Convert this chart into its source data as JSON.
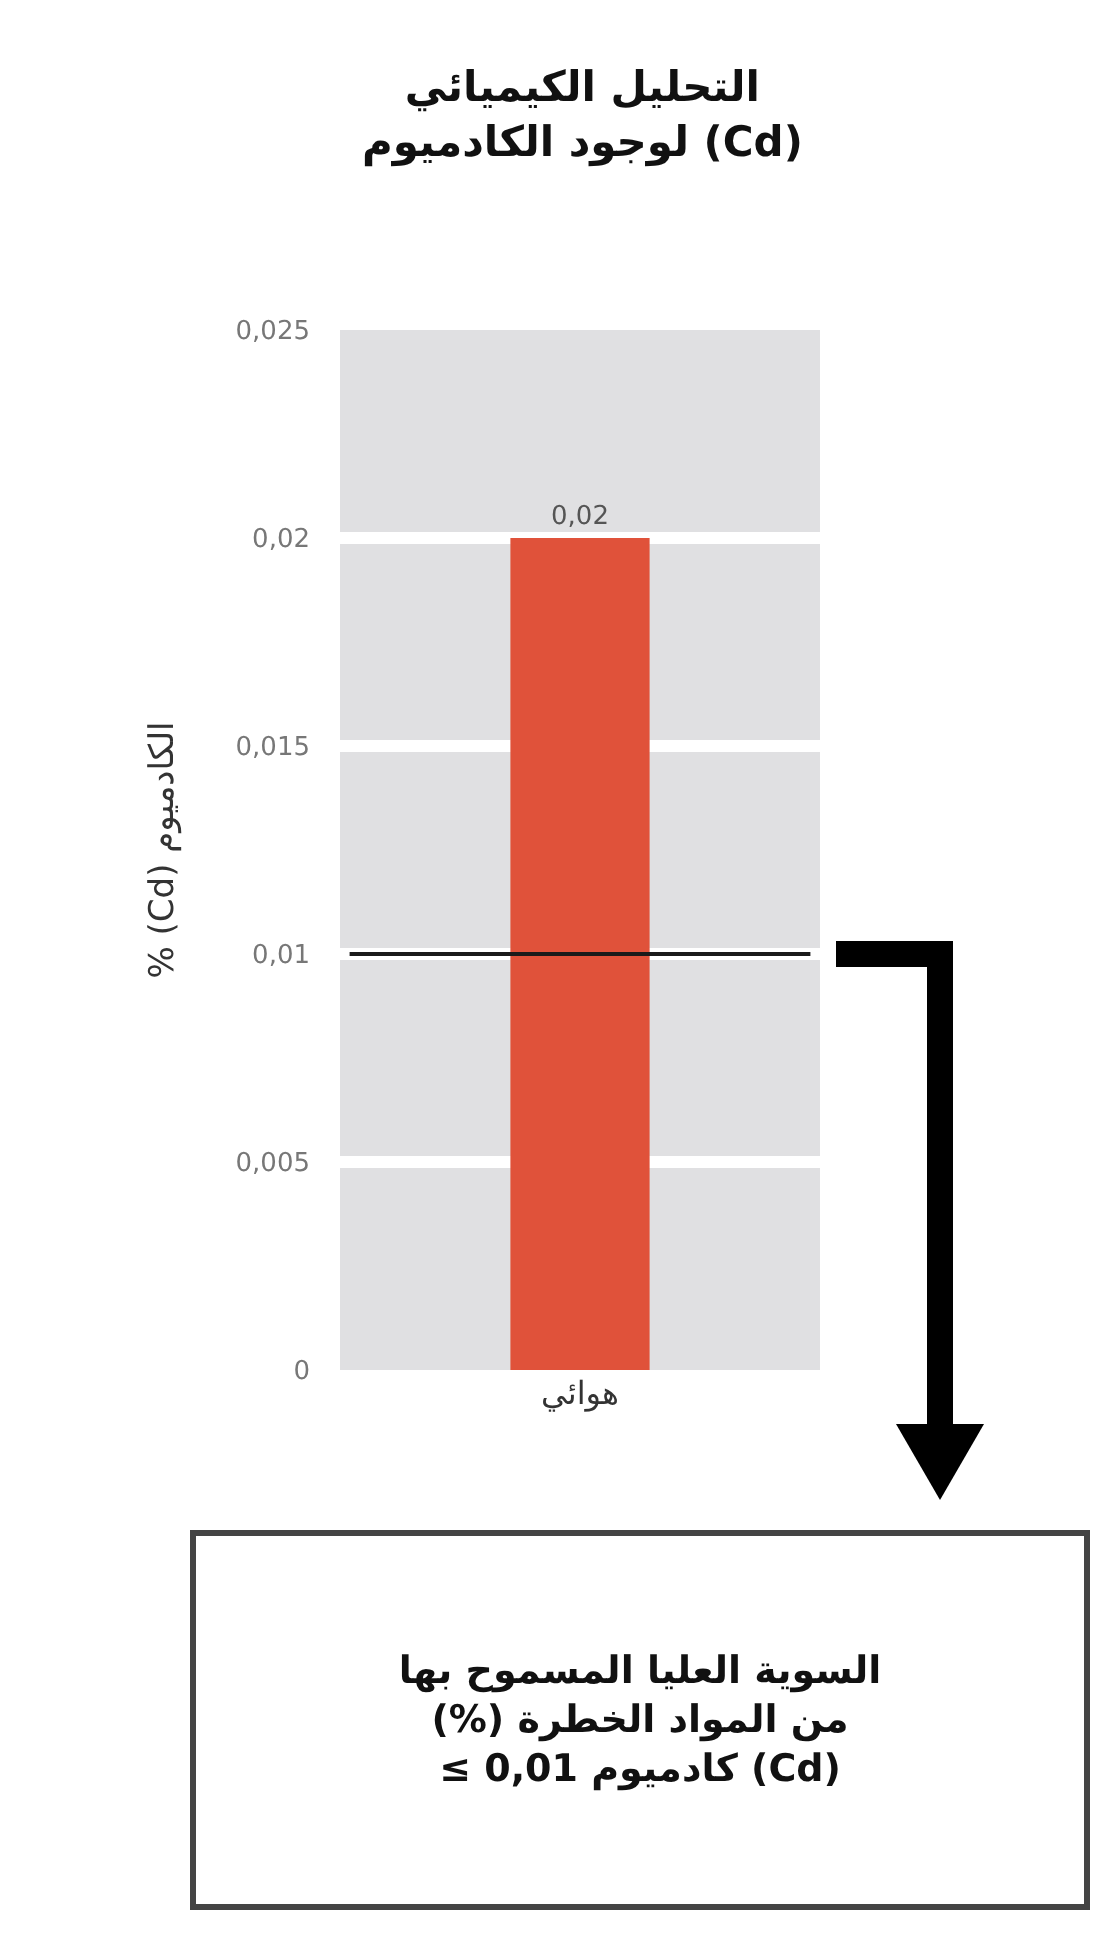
{
  "chart_data": {
    "type": "bar",
    "title": "التحليل الكيميائي\nلوجود الكادميوم (Cd)",
    "ylabel": "% (Cd) الكادميوم",
    "categories": [
      "هوائي"
    ],
    "values": [
      0.02
    ],
    "color": "#e0523a",
    "value_labels": [
      "0,02"
    ],
    "ylim": [
      0,
      0.025
    ],
    "yticks": [
      0,
      {
        "value": 0.005,
        "label": "0,005"
      },
      {
        "value": 0.01,
        "label": "0,01"
      },
      {
        "value": 0.015,
        "label": "0,015"
      },
      {
        "value": 0.02,
        "label": "0,02"
      },
      {
        "value": 0.025,
        "label": "0,025"
      }
    ],
    "grid": "y",
    "legend": false,
    "ref_lines": [
      {
        "axis": "y",
        "value": 0.01,
        "color": "#1a1a1a"
      }
    ],
    "annotations": [
      "السوية العليا المسموح بها\n(%) من المواد الخطرة\n≤ 0,01 كادميوم (Cd)"
    ]
  }
}
